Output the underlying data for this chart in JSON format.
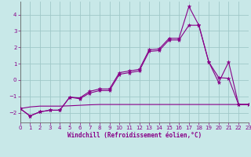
{
  "background_color": "#c8e8e8",
  "grid_color": "#a0c8c8",
  "line_color": "#880088",
  "xlabel": "Windchill (Refroidissement éolien,°C)",
  "xlim": [
    0,
    23
  ],
  "ylim": [
    -2.6,
    4.8
  ],
  "yticks": [
    -2,
    -1,
    0,
    1,
    2,
    3,
    4
  ],
  "xticks": [
    0,
    1,
    2,
    3,
    4,
    5,
    6,
    7,
    8,
    9,
    10,
    11,
    12,
    13,
    14,
    15,
    16,
    17,
    18,
    19,
    20,
    21,
    22,
    23
  ],
  "s1_x": [
    0,
    1,
    2,
    3,
    4,
    5,
    6,
    7,
    8,
    9,
    10,
    11,
    12,
    13,
    14,
    15,
    16,
    17,
    18,
    19,
    20,
    21,
    22,
    23
  ],
  "s1_y": [
    -1.75,
    -2.2,
    -1.95,
    -1.85,
    -1.85,
    -1.05,
    -1.1,
    -0.7,
    -0.55,
    -0.55,
    0.45,
    0.55,
    0.65,
    1.85,
    1.9,
    2.55,
    2.55,
    4.5,
    3.35,
    1.1,
    -0.15,
    1.1,
    -1.5,
    -1.5
  ],
  "s2_x": [
    0,
    1,
    2,
    3,
    4,
    5,
    6,
    7,
    8,
    9,
    10,
    11,
    12,
    13,
    14,
    15,
    16,
    17,
    18,
    19,
    20,
    21,
    22,
    23
  ],
  "s2_y": [
    -1.75,
    -2.2,
    -1.95,
    -1.85,
    -1.85,
    -1.05,
    -1.15,
    -0.8,
    -0.65,
    -0.65,
    0.35,
    0.45,
    0.55,
    1.75,
    1.8,
    2.45,
    2.45,
    3.35,
    3.35,
    1.1,
    0.15,
    0.1,
    -1.5,
    -1.5
  ],
  "s3_x": [
    0,
    1,
    2,
    3,
    4,
    5,
    6,
    7,
    8,
    9,
    10,
    11,
    12,
    13,
    14,
    15,
    16,
    17,
    18,
    19,
    20,
    21,
    22,
    23
  ],
  "s3_y": [
    -1.75,
    -1.65,
    -1.6,
    -1.6,
    -1.6,
    -1.58,
    -1.55,
    -1.52,
    -1.5,
    -1.5,
    -1.5,
    -1.5,
    -1.5,
    -1.5,
    -1.5,
    -1.5,
    -1.5,
    -1.5,
    -1.5,
    -1.5,
    -1.5,
    -1.5,
    -1.5,
    -1.5
  ]
}
